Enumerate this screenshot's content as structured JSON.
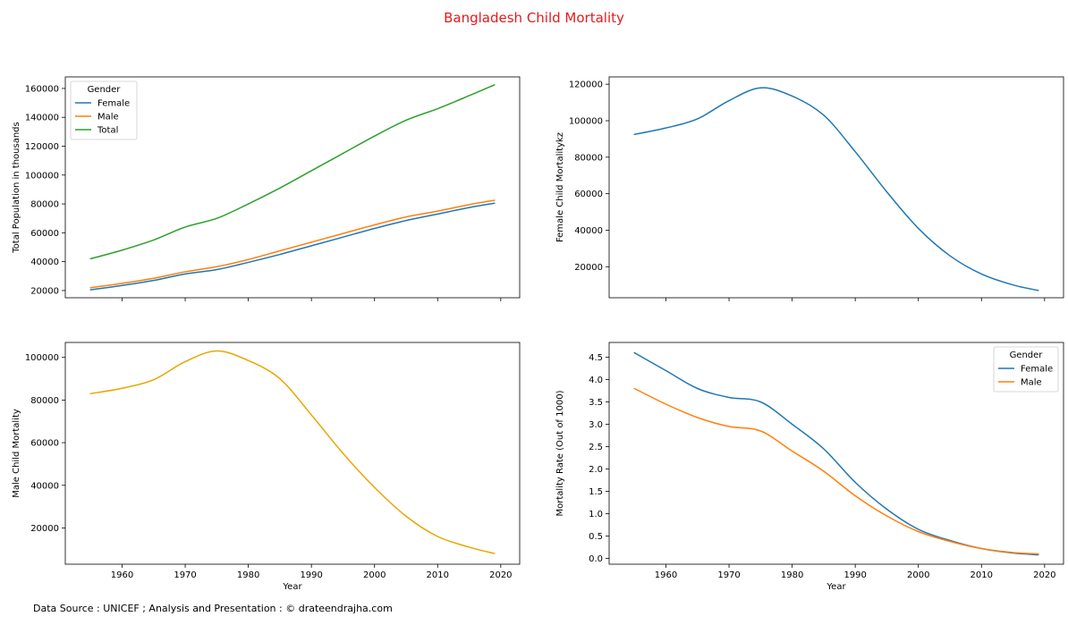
{
  "suptitle": "Bangladesh Child Mortality",
  "footer": "Data Source : UNICEF ; Analysis and Presentation : © drateendrajha.com",
  "chart_data": [
    {
      "type": "line",
      "position": "top-left",
      "xlabel": "",
      "ylabel": "Total Population in thousands",
      "xlim": [
        1951,
        2023
      ],
      "ylim": [
        15000,
        168000
      ],
      "xticks": [
        1960,
        1970,
        1980,
        1990,
        2000,
        2010,
        2020
      ],
      "show_xticklabels": false,
      "yticks": [
        20000,
        40000,
        60000,
        80000,
        100000,
        120000,
        140000,
        160000
      ],
      "legend": {
        "title": "Gender",
        "placement": "top-left"
      },
      "x": [
        1955,
        1960,
        1965,
        1970,
        1975,
        1980,
        1985,
        1990,
        1995,
        2000,
        2005,
        2010,
        2015,
        2019
      ],
      "series": [
        {
          "name": "Female",
          "color": "#1f77b4",
          "values": [
            20500,
            23500,
            27000,
            31500,
            34500,
            39500,
            45000,
            51000,
            57000,
            63000,
            68500,
            73000,
            77500,
            80500
          ]
        },
        {
          "name": "Male",
          "color": "#ff7f0e",
          "values": [
            22000,
            25000,
            28500,
            33000,
            36500,
            41500,
            47500,
            53500,
            59500,
            65500,
            71000,
            75000,
            79500,
            82500
          ]
        },
        {
          "name": "Total",
          "color": "#2ca02c",
          "values": [
            42000,
            48000,
            55000,
            64000,
            70000,
            80000,
            91000,
            103000,
            115000,
            127000,
            138000,
            146000,
            155000,
            162500
          ]
        }
      ]
    },
    {
      "type": "line",
      "position": "top-right",
      "xlabel": "",
      "ylabel": "Female Child Mortalitykz",
      "xlim": [
        1951,
        2023
      ],
      "ylim": [
        3000,
        124000
      ],
      "xticks": [
        1960,
        1970,
        1980,
        1990,
        2000,
        2010,
        2020
      ],
      "show_xticklabels": false,
      "yticks": [
        20000,
        40000,
        60000,
        80000,
        100000,
        120000
      ],
      "x": [
        1955,
        1960,
        1965,
        1970,
        1975,
        1980,
        1985,
        1990,
        1995,
        2000,
        2005,
        2010,
        2015,
        2019
      ],
      "series": [
        {
          "name": "",
          "color": "#1f77b4",
          "values": [
            92500,
            96000,
            101000,
            111000,
            118000,
            113500,
            103000,
            83000,
            61000,
            41000,
            26000,
            16000,
            10000,
            7000
          ]
        }
      ]
    },
    {
      "type": "line",
      "position": "bottom-left",
      "xlabel": "Year",
      "ylabel": "Male Child Mortality",
      "xlim": [
        1951,
        2023
      ],
      "ylim": [
        3000,
        107000
      ],
      "xticks": [
        1960,
        1970,
        1980,
        1990,
        2000,
        2010,
        2020
      ],
      "show_xticklabels": true,
      "yticks": [
        20000,
        40000,
        60000,
        80000,
        100000
      ],
      "x": [
        1955,
        1960,
        1965,
        1970,
        1975,
        1980,
        1985,
        1990,
        1995,
        2000,
        2005,
        2010,
        2015,
        2019
      ],
      "series": [
        {
          "name": "",
          "color": "#e6a700",
          "values": [
            83000,
            85500,
            89500,
            98000,
            103000,
            98500,
            90000,
            73000,
            55000,
            39000,
            25500,
            16000,
            11000,
            8000
          ]
        }
      ]
    },
    {
      "type": "line",
      "position": "bottom-right",
      "xlabel": "Year",
      "ylabel": "Mortality Rate (Out of 1000)",
      "xlim": [
        1951,
        2023
      ],
      "ylim": [
        -0.13,
        4.83
      ],
      "xticks": [
        1960,
        1970,
        1980,
        1990,
        2000,
        2010,
        2020
      ],
      "show_xticklabels": true,
      "yticks": [
        0.0,
        0.5,
        1.0,
        1.5,
        2.0,
        2.5,
        3.0,
        3.5,
        4.0,
        4.5
      ],
      "ytick_format": "0.0",
      "legend": {
        "title": "Gender",
        "placement": "top-right"
      },
      "x": [
        1955,
        1960,
        1965,
        1970,
        1975,
        1980,
        1985,
        1990,
        1995,
        2000,
        2005,
        2010,
        2015,
        2019
      ],
      "series": [
        {
          "name": "Female",
          "color": "#1f77b4",
          "values": [
            4.6,
            4.2,
            3.8,
            3.6,
            3.5,
            3.0,
            2.45,
            1.7,
            1.1,
            0.65,
            0.4,
            0.22,
            0.12,
            0.08
          ]
        },
        {
          "name": "Male",
          "color": "#ff7f0e",
          "values": [
            3.8,
            3.45,
            3.15,
            2.95,
            2.85,
            2.4,
            1.95,
            1.4,
            0.95,
            0.6,
            0.38,
            0.22,
            0.13,
            0.1
          ]
        }
      ]
    }
  ]
}
